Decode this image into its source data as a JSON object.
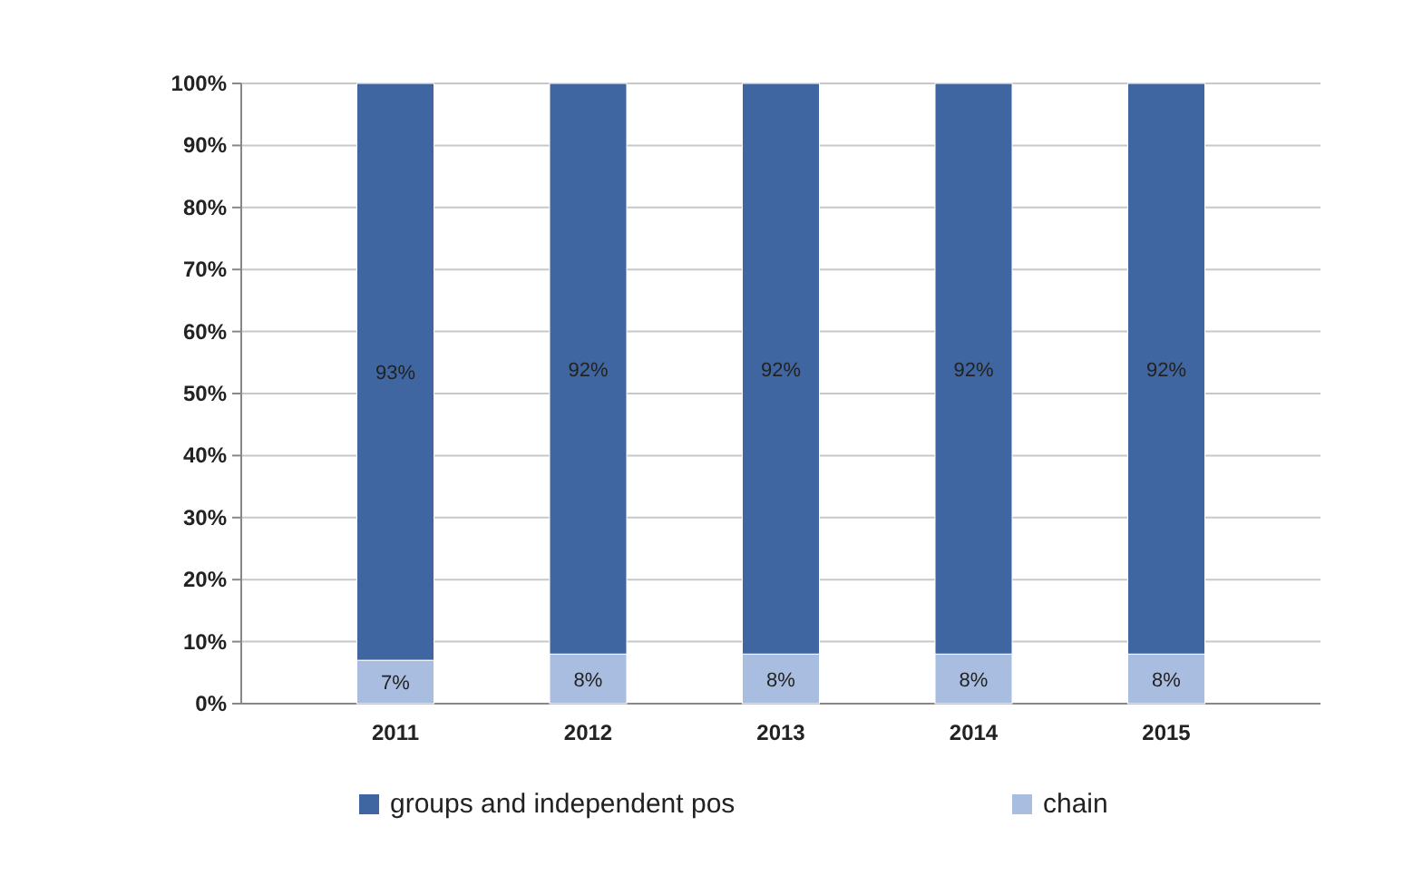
{
  "chart_data": {
    "type": "bar",
    "stacked": true,
    "categories": [
      "2011",
      "2012",
      "2013",
      "2014",
      "2015"
    ],
    "series": [
      {
        "name": "chain",
        "color": "#a9bde0",
        "values": [
          7,
          8,
          8,
          8,
          8
        ],
        "value_labels": [
          "7%",
          "8%",
          "8%",
          "8%",
          "8%"
        ]
      },
      {
        "name": "groups and independent pos",
        "color": "#3f66a0",
        "values": [
          93,
          92,
          92,
          92,
          92
        ],
        "value_labels": [
          "93%",
          "92%",
          "92%",
          "92%",
          "92%"
        ]
      }
    ],
    "ylim": [
      0,
      100
    ],
    "yticks": [
      {
        "value": 0,
        "label": "0%"
      },
      {
        "value": 10,
        "label": "10%"
      },
      {
        "value": 20,
        "label": "20%"
      },
      {
        "value": 30,
        "label": "30%"
      },
      {
        "value": 40,
        "label": "40%"
      },
      {
        "value": 50,
        "label": "50%"
      },
      {
        "value": 60,
        "label": "60%"
      },
      {
        "value": 70,
        "label": "70%"
      },
      {
        "value": 80,
        "label": "80%"
      },
      {
        "value": 90,
        "label": "90%"
      },
      {
        "value": 100,
        "label": "100%"
      }
    ],
    "grid": "y",
    "legend": "bottom"
  }
}
